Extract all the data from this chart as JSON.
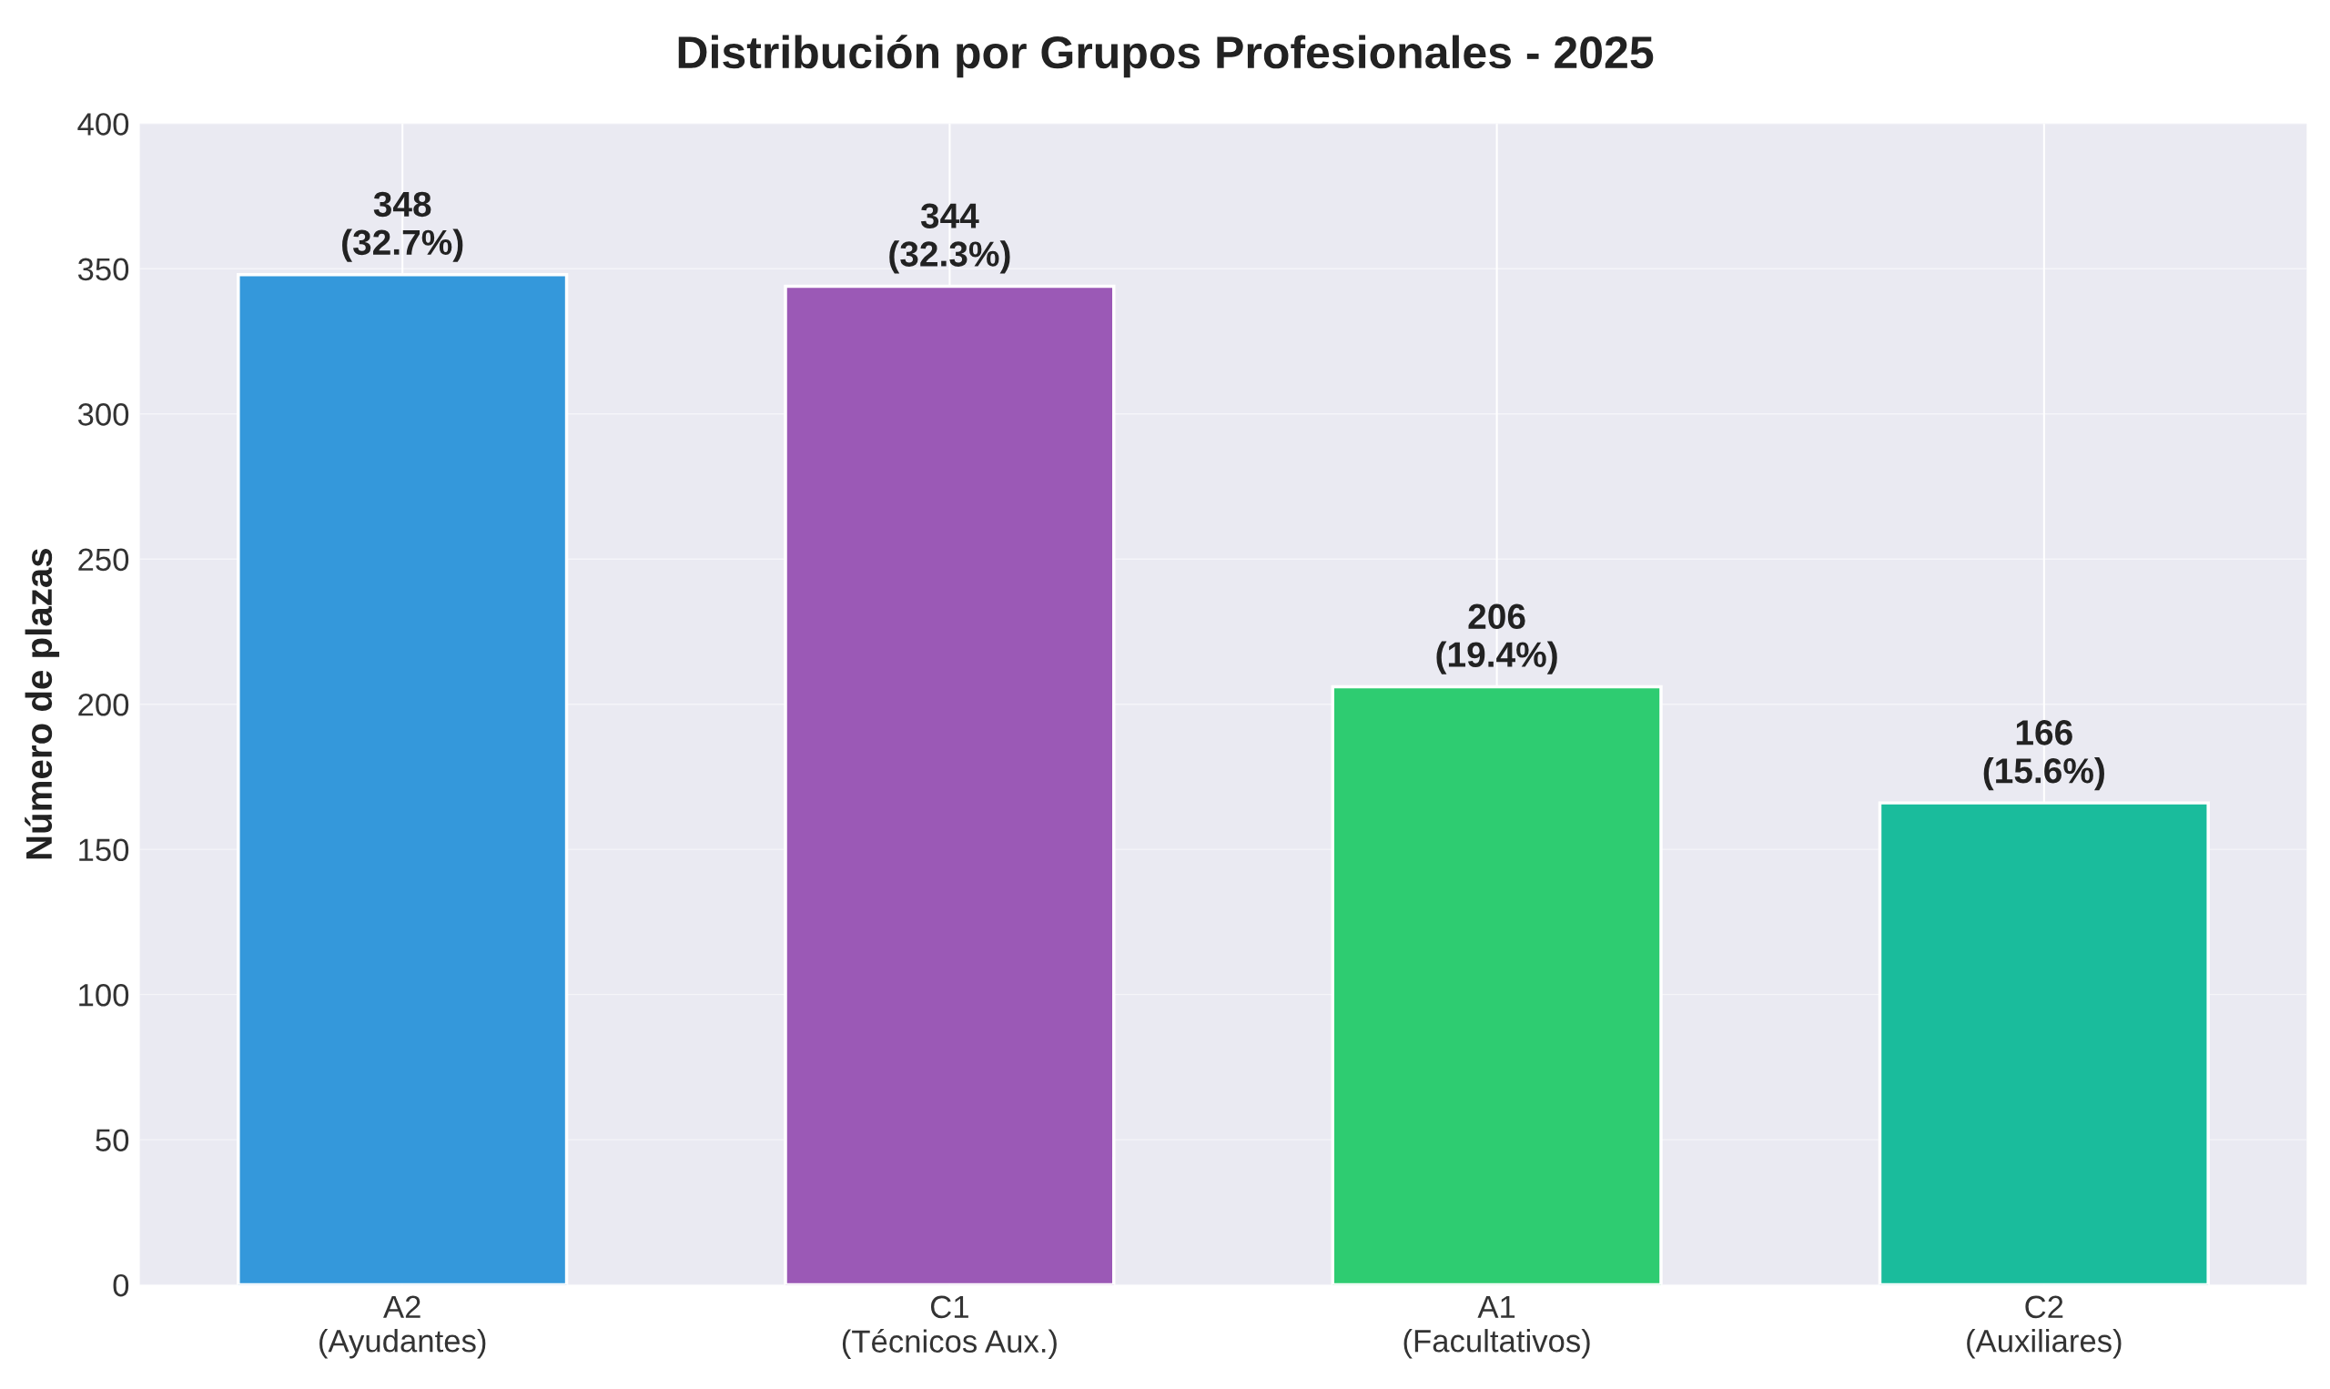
{
  "chart_data": {
    "type": "bar",
    "title": "Distribución por Grupos Profesionales - 2025",
    "ylabel": "Número de plazas",
    "categories": [
      "A2\n(Ayudantes)",
      "C1\n(Técnicos Aux.)",
      "A1\n(Facultativos)",
      "C2\n(Auxiliares)"
    ],
    "values": [
      348,
      344,
      206,
      166
    ],
    "colors": [
      "#3498db",
      "#9b59b6",
      "#2ecc71",
      "#1abc9c"
    ],
    "value_labels": [
      "348\n(32.7%)",
      "344\n(32.3%)",
      "206\n(19.4%)",
      "166\n(15.6%)"
    ],
    "ylim": [
      0,
      400
    ],
    "yticks": [
      0,
      50,
      100,
      150,
      200,
      250,
      300,
      350,
      400
    ],
    "grid": true
  }
}
